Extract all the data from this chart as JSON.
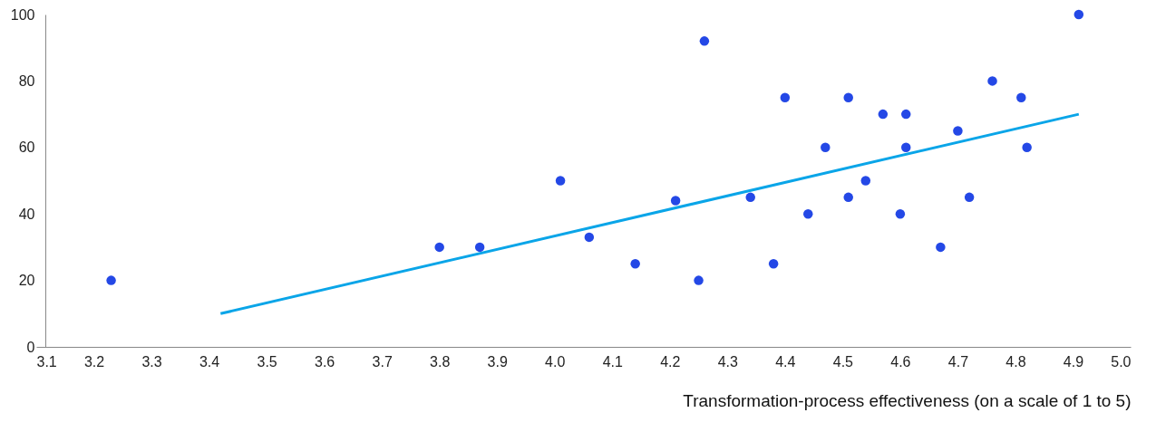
{
  "chart_data": {
    "type": "scatter",
    "xlabel": "Transformation-process effectiveness  (on a scale of 1 to 5)",
    "xlim": [
      3.1,
      5.0
    ],
    "xticks": [
      {
        "value": 3.1,
        "label": "3.1"
      },
      {
        "value": 3.2,
        "label": "3.2"
      },
      {
        "value": 3.3,
        "label": "3.3"
      },
      {
        "value": 3.4,
        "label": "3.4"
      },
      {
        "value": 3.5,
        "label": "3.5"
      },
      {
        "value": 3.6,
        "label": "3.6"
      },
      {
        "value": 3.7,
        "label": "3.7"
      },
      {
        "value": 3.8,
        "label": "3.8"
      },
      {
        "value": 3.9,
        "label": "3.9"
      },
      {
        "value": 4.0,
        "label": "4.0"
      },
      {
        "value": 4.1,
        "label": "4.1"
      },
      {
        "value": 4.2,
        "label": "4.2"
      },
      {
        "value": 4.3,
        "label": "4.3"
      },
      {
        "value": 4.4,
        "label": "4.4"
      },
      {
        "value": 4.5,
        "label": "4.5"
      },
      {
        "value": 4.6,
        "label": "4.6"
      },
      {
        "value": 4.7,
        "label": "4.7"
      },
      {
        "value": 4.8,
        "label": "4.8"
      },
      {
        "value": 4.9,
        "label": "4.9"
      },
      {
        "value": 5.0,
        "label": "5.0"
      }
    ],
    "ylim": [
      0,
      100
    ],
    "yticks": [
      0,
      20,
      40,
      60,
      80,
      100
    ],
    "grid": false,
    "series": [
      {
        "marker": "circle",
        "color": "#2448e6",
        "x": [
          3.23,
          3.8,
          3.87,
          4.01,
          4.06,
          4.14,
          4.21,
          4.25,
          4.26,
          4.34,
          4.38,
          4.4,
          4.44,
          4.47,
          4.51,
          4.51,
          4.54,
          4.57,
          4.61,
          4.61,
          4.6,
          4.67,
          4.7,
          4.72,
          4.76,
          4.81,
          4.82,
          4.91
        ],
        "values": [
          20,
          30,
          30,
          50,
          33,
          25,
          44,
          20,
          92,
          45,
          25,
          75,
          40,
          60,
          75,
          45,
          50,
          70,
          70,
          60,
          40,
          30,
          65,
          45,
          80,
          75,
          60,
          100
        ]
      },
      {
        "type": "line",
        "color": "#0aa5e8",
        "x": [
          3.42,
          4.91
        ],
        "values": [
          10,
          70
        ]
      }
    ]
  }
}
